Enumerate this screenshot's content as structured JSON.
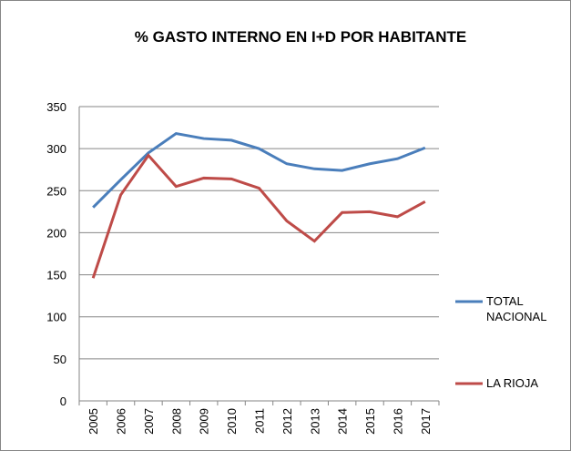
{
  "chart_data": {
    "type": "line",
    "title": "% GASTO INTERNO EN I+D POR HABITANTE",
    "categories": [
      "2005",
      "2006",
      "2007",
      "2008",
      "2009",
      "2010",
      "2011",
      "2012",
      "2013",
      "2014",
      "2015",
      "2016",
      "2017"
    ],
    "series": [
      {
        "name": "TOTAL NACIONAL",
        "color": "#4a7ebb",
        "values": [
          230,
          263,
          295,
          318,
          312,
          310,
          300,
          282,
          276,
          274,
          282,
          288,
          301
        ]
      },
      {
        "name": "LA RIOJA",
        "color": "#be4b48",
        "values": [
          146,
          245,
          292,
          255,
          265,
          264,
          253,
          214,
          190,
          224,
          225,
          219,
          237
        ]
      }
    ],
    "ylim": [
      0,
      350
    ],
    "yticks": [
      0,
      50,
      100,
      150,
      200,
      250,
      300,
      350
    ],
    "grid": true,
    "legend": "right"
  }
}
